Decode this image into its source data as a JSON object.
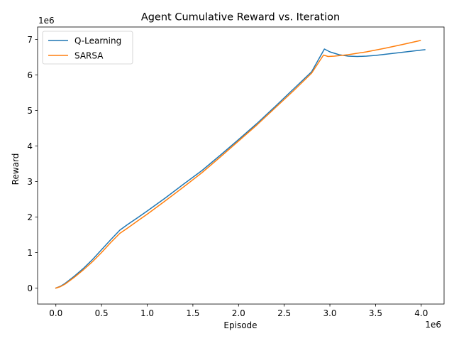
{
  "chart_data": {
    "type": "line",
    "title": "Agent Cumulative Reward vs. Iteration",
    "xlabel": "Episode",
    "ylabel": "Reward",
    "x_offset_label": "1e6",
    "y_offset_label": "1e6",
    "xlim": [
      -0.2,
      4.25
    ],
    "ylim": [
      -0.45,
      7.35
    ],
    "x_ticks": [
      0.0,
      0.5,
      1.0,
      1.5,
      2.0,
      2.5,
      3.0,
      3.5,
      4.0
    ],
    "x_tick_labels": [
      "0.0",
      "0.5",
      "1.0",
      "1.5",
      "2.0",
      "2.5",
      "3.0",
      "3.5",
      "4.0"
    ],
    "y_ticks": [
      0,
      1,
      2,
      3,
      4,
      5,
      6,
      7
    ],
    "y_tick_labels": [
      "0",
      "1",
      "2",
      "3",
      "4",
      "5",
      "6",
      "7"
    ],
    "legend_position": "top-left",
    "grid": false,
    "series": [
      {
        "name": "Q-Learning",
        "color": "#1f77b4",
        "x": [
          0.0,
          0.05,
          0.1,
          0.2,
          0.3,
          0.4,
          0.5,
          0.6,
          0.7,
          0.78,
          0.9,
          1.0,
          1.2,
          1.4,
          1.6,
          1.8,
          2.0,
          2.2,
          2.4,
          2.6,
          2.8,
          2.94,
          3.0,
          3.1,
          3.2,
          3.3,
          3.4,
          3.5,
          3.6,
          3.7,
          3.8,
          3.9,
          4.0,
          4.04
        ],
        "y": [
          0.0,
          0.05,
          0.13,
          0.33,
          0.55,
          0.8,
          1.08,
          1.36,
          1.63,
          1.78,
          1.99,
          2.17,
          2.54,
          2.93,
          3.31,
          3.74,
          4.18,
          4.63,
          5.11,
          5.6,
          6.09,
          6.73,
          6.65,
          6.57,
          6.53,
          6.52,
          6.53,
          6.55,
          6.58,
          6.61,
          6.64,
          6.67,
          6.7,
          6.71
        ]
      },
      {
        "name": "SARSA",
        "color": "#ff7f0e",
        "x": [
          0.0,
          0.05,
          0.1,
          0.2,
          0.3,
          0.4,
          0.5,
          0.6,
          0.7,
          0.78,
          0.9,
          1.0,
          1.2,
          1.4,
          1.6,
          1.8,
          2.0,
          2.2,
          2.4,
          2.6,
          2.8,
          2.93,
          2.98,
          3.05,
          3.2,
          3.4,
          3.6,
          3.8,
          3.99
        ],
        "y": [
          0.0,
          0.04,
          0.11,
          0.3,
          0.51,
          0.74,
          1.0,
          1.28,
          1.54,
          1.68,
          1.9,
          2.08,
          2.46,
          2.85,
          3.25,
          3.69,
          4.14,
          4.59,
          5.07,
          5.55,
          6.05,
          6.56,
          6.52,
          6.53,
          6.57,
          6.65,
          6.75,
          6.86,
          6.97
        ]
      }
    ]
  }
}
